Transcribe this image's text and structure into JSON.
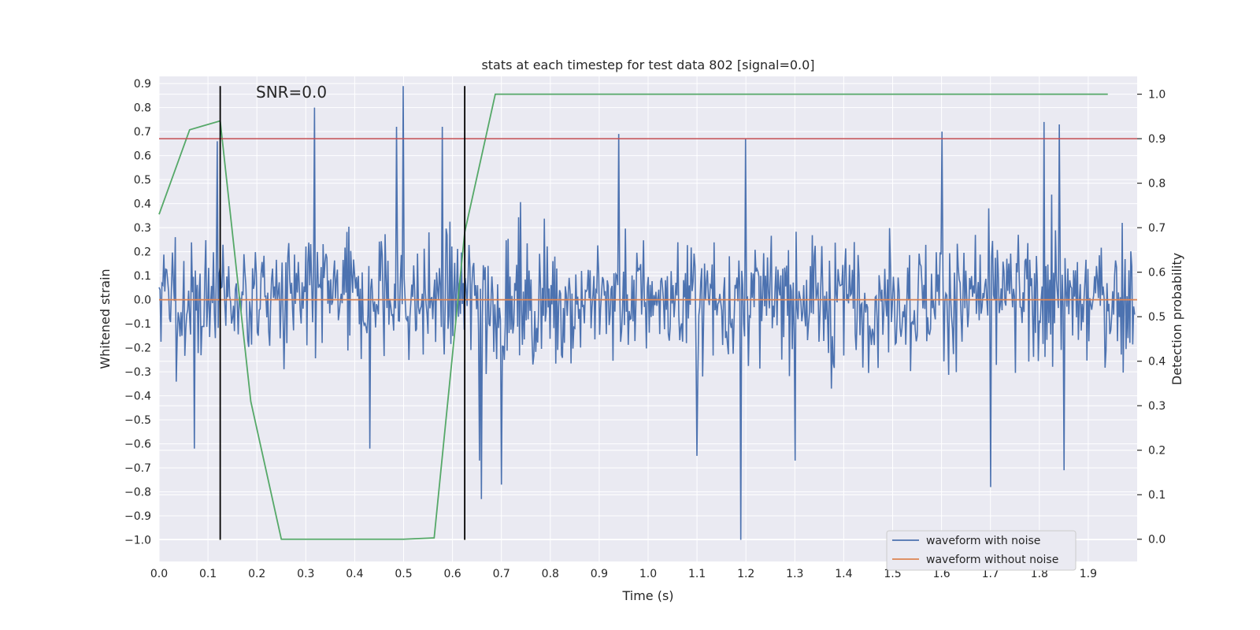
{
  "chart_data": {
    "type": "line",
    "title": "stats at each timestep for test data 802 [signal=0.0]",
    "xlabel": "Time (s)",
    "ylabel": "Whitened strain",
    "y2label": "Detection probability",
    "annotation": "SNR=0.0",
    "xlim": [
      0.0,
      2.0
    ],
    "ylim": [
      -1.09,
      0.93
    ],
    "y2lim": [
      -0.05,
      1.04
    ],
    "xticks": [
      0.0,
      0.1,
      0.2,
      0.3,
      0.4,
      0.5,
      0.6,
      0.7,
      0.8,
      0.9,
      1.0,
      1.1,
      1.2,
      1.3,
      1.4,
      1.5,
      1.6,
      1.7,
      1.8,
      1.9
    ],
    "xtick_labels": [
      "0.0",
      "0.1",
      "0.2",
      "0.3",
      "0.4",
      "0.5",
      "0.6",
      "0.7",
      "0.8",
      "0.9",
      "1.0",
      "1.1",
      "1.2",
      "1.3",
      "1.4",
      "1.5",
      "1.6",
      "1.7",
      "1.8",
      "1.9"
    ],
    "yticks": [
      0.9,
      0.8,
      0.7,
      0.6,
      0.5,
      0.4,
      0.3,
      0.2,
      0.1,
      0.0,
      -0.1,
      -0.2,
      -0.3,
      -0.4,
      -0.5,
      -0.6,
      -0.7,
      -0.8,
      -0.9,
      -1.0
    ],
    "ytick_labels": [
      "0.9",
      "0.8",
      "0.7",
      "0.6",
      "0.5",
      "0.4",
      "0.3",
      "0.2",
      "0.1",
      "0.0",
      "−0.1",
      "−0.2",
      "−0.3",
      "−0.4",
      "−0.5",
      "−0.6",
      "−0.7",
      "−0.8",
      "−0.9",
      "−1.0"
    ],
    "y2ticks": [
      1.0,
      0.9,
      0.8,
      0.7,
      0.6,
      0.5,
      0.4,
      0.3,
      0.2,
      0.1,
      0.0
    ],
    "y2tick_labels": [
      "1.0",
      "0.9",
      "0.8",
      "0.7",
      "0.6",
      "0.5",
      "0.4",
      "0.3",
      "0.2",
      "0.1",
      "0.0"
    ],
    "grid": true,
    "legend_placement": "lower-right",
    "series": [
      {
        "name": "waveform with noise",
        "color": "#4c72b0",
        "axis": "left",
        "dt": 0.00195,
        "amplitude_range": [
          -1.0,
          0.89
        ],
        "spikes": [
          {
            "x": 0.118,
            "y": 0.66
          },
          {
            "x": 0.318,
            "y": 0.8
          },
          {
            "x": 0.5,
            "y": 0.89
          },
          {
            "x": 0.485,
            "y": 0.72
          },
          {
            "x": 0.58,
            "y": 0.72
          },
          {
            "x": 1.19,
            "y": -1.0
          },
          {
            "x": 1.7,
            "y": -0.78
          },
          {
            "x": 0.66,
            "y": -0.83
          },
          {
            "x": 0.7,
            "y": -0.77
          },
          {
            "x": 1.85,
            "y": -0.71
          },
          {
            "x": 0.072,
            "y": -0.62
          },
          {
            "x": 0.43,
            "y": -0.62
          },
          {
            "x": 0.94,
            "y": 0.69
          },
          {
            "x": 1.2,
            "y": 0.67
          },
          {
            "x": 1.81,
            "y": 0.74
          },
          {
            "x": 1.84,
            "y": 0.73
          },
          {
            "x": 1.1,
            "y": -0.65
          },
          {
            "x": 1.3,
            "y": -0.67
          },
          {
            "x": 1.6,
            "y": 0.7
          },
          {
            "x": 0.655,
            "y": -0.67
          }
        ]
      },
      {
        "name": "waveform without noise",
        "color": "#dd8452",
        "axis": "left",
        "x": [
          0.0,
          2.0
        ],
        "y": [
          0.0,
          0.0
        ]
      },
      {
        "name": "",
        "color": "#55a868",
        "axis": "right",
        "x": [
          0.0,
          0.0625,
          0.125,
          0.1875,
          0.25,
          0.3125,
          0.375,
          0.4375,
          0.5,
          0.5625,
          0.625,
          0.6875,
          0.75,
          1.94
        ],
        "y": [
          0.73,
          0.92,
          0.94,
          0.31,
          0.0,
          0.0,
          0.0,
          0.0,
          0.0,
          0.003,
          0.69,
          1.0,
          1.0,
          1.0
        ]
      }
    ],
    "hlines": [
      {
        "axis": "right",
        "y": 0.9,
        "color": "#c44e52"
      }
    ],
    "vlines": [
      {
        "x": 0.125,
        "ymin": -1.0,
        "ymax": 0.89,
        "color": "#000000"
      },
      {
        "x": 0.625,
        "ymin": -1.0,
        "ymax": 0.89,
        "color": "#000000"
      }
    ],
    "style": {
      "plot_background": "#eaeaf2",
      "grid_color": "#ffffff",
      "legend_background": "#eaeaf2",
      "legend_border": "#cccccc"
    }
  }
}
